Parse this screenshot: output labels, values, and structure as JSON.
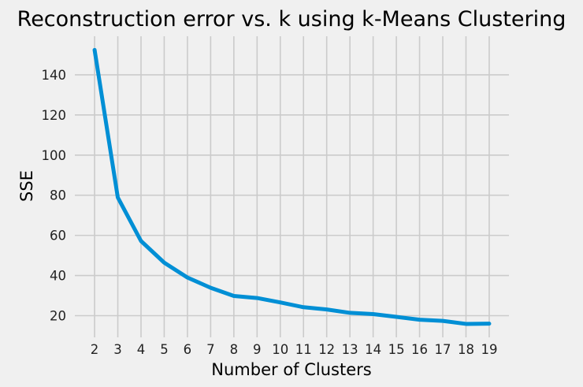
{
  "chart_data": {
    "type": "line",
    "title": "Reconstruction error vs. k using k-Means Clustering",
    "xlabel": "Number of Clusters",
    "ylabel": "SSE",
    "x": [
      2,
      3,
      4,
      5,
      6,
      7,
      8,
      9,
      10,
      11,
      12,
      13,
      14,
      15,
      16,
      17,
      18,
      19
    ],
    "series": [
      {
        "values": [
          152.4,
          78.9,
          57.2,
          46.4,
          39.0,
          33.9,
          29.8,
          28.8,
          26.6,
          24.2,
          23.1,
          21.4,
          20.8,
          19.4,
          18.0,
          17.4,
          15.9,
          16.0
        ]
      }
    ],
    "yticks": [
      20,
      40,
      60,
      80,
      100,
      120,
      140
    ],
    "xlim": [
      1.15,
      19.85
    ],
    "ylim": [
      9.2,
      159.2
    ],
    "grid": true,
    "line_color": "#008fd5",
    "background": "#f0f0f0"
  }
}
